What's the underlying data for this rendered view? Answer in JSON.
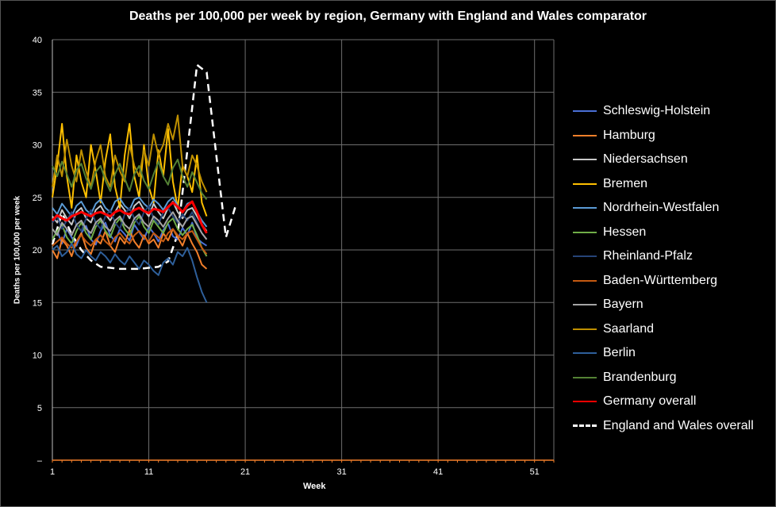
{
  "chart_data": {
    "type": "line",
    "title": "Deaths per 100,000 per week by region, Germany with England and  Wales comparator",
    "xlabel": "Week",
    "ylabel": "Deaths per 100,000 per week",
    "xlim": [
      1,
      53
    ],
    "ylim": [
      0,
      40
    ],
    "x_ticks": [
      1,
      11,
      21,
      31,
      41,
      51
    ],
    "y_ticks": [
      0,
      5,
      10,
      15,
      20,
      25,
      30,
      35,
      40
    ],
    "y_tick_labels": [
      "–",
      "5",
      "10",
      "15",
      "20",
      "25",
      "30",
      "35",
      "40"
    ],
    "grid": true,
    "legend": "right",
    "background": "#000000",
    "x": [
      1,
      1.5,
      2,
      2.5,
      3,
      3.5,
      4,
      4.5,
      5,
      5.5,
      6,
      6.5,
      7,
      7.5,
      8,
      8.5,
      9,
      9.5,
      10,
      10.5,
      11,
      11.5,
      12,
      12.5,
      13,
      13.5,
      14,
      14.5,
      15,
      15.5,
      16,
      16.5,
      17
    ],
    "series": [
      {
        "name": "Schleswig-Holstein",
        "color": "#4a6fd6",
        "values": [
          21.0,
          21.8,
          20.6,
          22.0,
          21.2,
          20.4,
          21.6,
          22.3,
          21.0,
          20.5,
          21.8,
          22.6,
          21.4,
          20.8,
          22.0,
          21.5,
          20.9,
          22.4,
          21.7,
          21.0,
          22.2,
          21.6,
          20.8,
          21.9,
          22.5,
          21.3,
          21.0,
          22.1,
          21.4,
          22.6,
          21.1,
          20.7,
          20.4
        ]
      },
      {
        "name": "Hamburg",
        "color": "#f27f2a",
        "values": [
          20.0,
          19.2,
          21.0,
          20.4,
          19.4,
          20.8,
          21.6,
          20.2,
          19.6,
          21.0,
          20.6,
          21.8,
          20.4,
          19.8,
          21.2,
          20.6,
          21.9,
          20.8,
          20.2,
          21.4,
          20.6,
          21.0,
          20.2,
          21.6,
          20.9,
          22.0,
          21.2,
          20.4,
          21.6,
          20.6,
          19.8,
          18.6,
          18.2
        ]
      },
      {
        "name": "Niedersachsen",
        "color": "#c8c8c8",
        "values": [
          23.2,
          22.6,
          23.8,
          23.0,
          22.4,
          23.6,
          24.0,
          23.0,
          22.6,
          23.8,
          24.2,
          23.4,
          22.8,
          23.6,
          24.4,
          23.8,
          23.0,
          24.2,
          24.6,
          23.8,
          23.2,
          24.4,
          23.6,
          23.0,
          24.0,
          24.6,
          23.6,
          23.0,
          23.8,
          24.0,
          23.2,
          22.4,
          21.8
        ]
      },
      {
        "name": "Bremen",
        "color": "#ffc000",
        "values": [
          25.0,
          28.0,
          32.0,
          27.0,
          24.0,
          29.0,
          26.5,
          25.0,
          30.0,
          27.5,
          24.5,
          28.5,
          31.0,
          26.0,
          24.0,
          29.0,
          32.0,
          27.0,
          25.0,
          30.0,
          26.0,
          24.5,
          29.5,
          27.0,
          31.5,
          26.5,
          24.0,
          28.0,
          27.0,
          25.5,
          29.0,
          24.5,
          23.2
        ]
      },
      {
        "name": "Nordrhein-Westfalen",
        "color": "#5b9bd5",
        "values": [
          24.0,
          23.4,
          24.4,
          23.8,
          23.2,
          24.2,
          24.6,
          23.8,
          23.4,
          24.4,
          24.8,
          24.0,
          23.6,
          24.6,
          24.9,
          24.2,
          23.8,
          24.8,
          25.0,
          24.4,
          24.0,
          24.8,
          24.4,
          23.8,
          24.6,
          25.0,
          24.2,
          23.6,
          24.4,
          24.6,
          23.6,
          22.8,
          22.2
        ]
      },
      {
        "name": "Hessen",
        "color": "#70ad47",
        "values": [
          21.0,
          21.8,
          22.4,
          21.2,
          20.6,
          21.8,
          22.6,
          21.6,
          21.0,
          22.2,
          22.8,
          21.8,
          21.2,
          22.4,
          23.0,
          22.0,
          21.4,
          22.6,
          23.2,
          22.2,
          21.6,
          22.8,
          22.2,
          21.6,
          22.6,
          23.0,
          22.0,
          21.4,
          22.0,
          22.4,
          21.4,
          20.2,
          19.4
        ]
      },
      {
        "name": "Rheinland-Pfalz",
        "color": "#264478",
        "values": [
          22.6,
          23.2,
          22.0,
          22.8,
          23.6,
          22.4,
          21.8,
          23.0,
          23.8,
          22.6,
          22.0,
          23.2,
          23.8,
          22.6,
          22.0,
          23.4,
          24.0,
          23.0,
          22.4,
          23.6,
          24.2,
          23.0,
          22.4,
          23.6,
          24.0,
          23.2,
          22.6,
          23.4,
          22.8,
          23.6,
          22.6,
          21.6,
          21.0
        ]
      },
      {
        "name": "Baden-Württemberg",
        "color": "#c55a11",
        "values": [
          20.4,
          20.8,
          21.2,
          20.6,
          20.2,
          20.8,
          21.4,
          20.8,
          20.4,
          21.0,
          21.4,
          20.8,
          20.4,
          21.2,
          21.6,
          21.0,
          20.6,
          21.4,
          21.8,
          21.2,
          20.8,
          21.6,
          21.2,
          20.8,
          21.6,
          22.0,
          21.4,
          21.0,
          21.6,
          21.8,
          21.0,
          20.2,
          19.6
        ]
      },
      {
        "name": "Bayern",
        "color": "#a5a5a5",
        "values": [
          22.0,
          21.4,
          22.6,
          22.0,
          21.4,
          22.4,
          22.8,
          22.0,
          21.6,
          22.6,
          23.0,
          22.2,
          21.8,
          22.8,
          23.2,
          22.4,
          22.0,
          23.0,
          23.4,
          22.6,
          22.2,
          23.2,
          22.8,
          22.2,
          23.0,
          23.6,
          22.8,
          22.2,
          23.0,
          23.2,
          22.4,
          21.6,
          21.0
        ]
      },
      {
        "name": "Saarland",
        "color": "#bf9000",
        "values": [
          26.0,
          29.0,
          27.0,
          30.5,
          28.0,
          26.5,
          29.5,
          27.5,
          26.0,
          28.5,
          30.0,
          27.0,
          26.0,
          29.0,
          27.5,
          26.5,
          30.0,
          28.0,
          27.0,
          29.5,
          28.0,
          31.0,
          29.0,
          30.0,
          32.0,
          30.5,
          32.8,
          28.0,
          27.0,
          29.0,
          28.0,
          26.5,
          25.5
        ]
      },
      {
        "name": "Berlin",
        "color": "#2e5f9a",
        "values": [
          20.0,
          20.4,
          19.4,
          19.8,
          20.6,
          19.6,
          19.2,
          20.0,
          19.4,
          19.0,
          19.8,
          19.4,
          18.8,
          19.6,
          19.0,
          18.6,
          19.4,
          18.8,
          18.2,
          19.0,
          18.6,
          18.0,
          17.6,
          18.8,
          19.2,
          18.6,
          19.8,
          19.4,
          20.2,
          19.0,
          17.4,
          16.0,
          15.0
        ]
      },
      {
        "name": "Brandenburg",
        "color": "#548235",
        "values": [
          28.0,
          27.0,
          28.4,
          27.2,
          26.0,
          27.6,
          28.2,
          26.8,
          25.8,
          27.4,
          28.0,
          26.6,
          25.6,
          27.2,
          28.2,
          26.8,
          25.6,
          27.2,
          28.0,
          26.6,
          25.8,
          27.2,
          28.4,
          27.0,
          26.2,
          27.8,
          28.6,
          27.0,
          26.0,
          27.4,
          26.4,
          25.4,
          24.8
        ]
      },
      {
        "name": "Germany overall",
        "color": "#ff0000",
        "values": [
          22.8,
          23.3,
          23.0,
          22.8,
          23.2,
          23.4,
          23.6,
          23.4,
          23.2,
          23.5,
          23.6,
          23.4,
          23.2,
          23.6,
          23.8,
          23.5,
          23.4,
          23.8,
          24.0,
          23.7,
          23.5,
          23.9,
          23.8,
          23.6,
          24.1,
          24.5,
          24.1,
          23.6,
          24.2,
          24.6,
          23.6,
          22.4,
          21.6
        ]
      }
    ],
    "comparator": {
      "name": "England and Wales overall",
      "color": "#ffffff",
      "dashed": true,
      "x": [
        1,
        2,
        3,
        4,
        5,
        6,
        7,
        8,
        9,
        10,
        11,
        12,
        13,
        14,
        15,
        16,
        17,
        18,
        19,
        20
      ],
      "values": [
        20.5,
        23.5,
        21.5,
        20.0,
        19.0,
        18.4,
        18.3,
        18.2,
        18.2,
        18.2,
        18.3,
        18.4,
        18.9,
        21.5,
        29.5,
        37.6,
        36.9,
        29.0,
        21.2,
        24.2
      ]
    }
  }
}
